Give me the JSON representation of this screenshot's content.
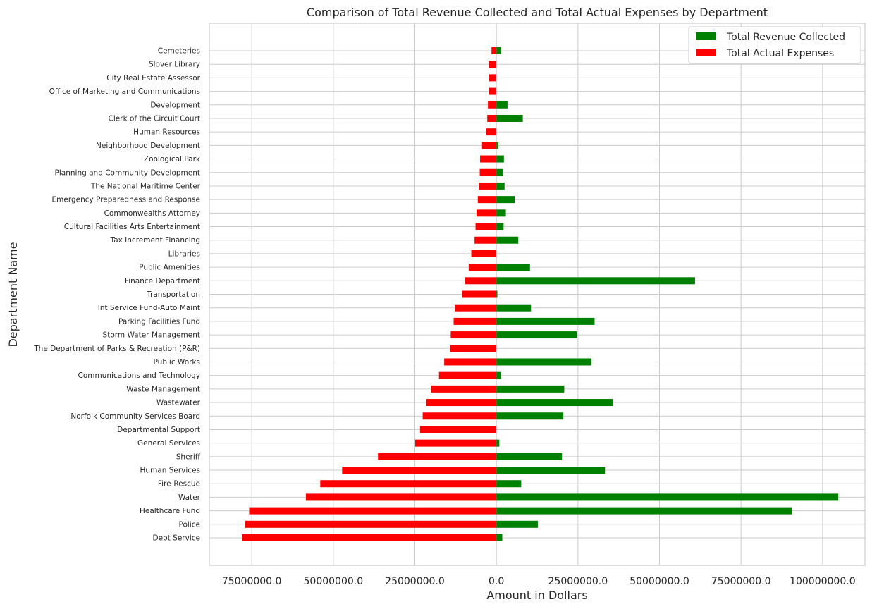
{
  "chart_data": {
    "type": "bar",
    "orientation": "horizontal",
    "title": "Comparison of Total Revenue Collected and Total Actual Expenses by Department",
    "xlabel": "Amount in Dollars",
    "ylabel": "Department Name",
    "xlim": [
      -88000000,
      113000000
    ],
    "xticks": [
      -75000000,
      -50000000,
      -25000000,
      0,
      25000000,
      50000000,
      75000000,
      100000000
    ],
    "xtick_labels": [
      "75000000.0",
      "50000000.0",
      "25000000.0",
      "0.0",
      "25000000.0",
      "50000000.0",
      "75000000.0",
      "100000000.0"
    ],
    "grid": true,
    "legend_position": "top-right",
    "categories": [
      "Debt Service",
      "Police",
      "Healthcare Fund",
      "Water",
      "Fire-Rescue",
      "Human Services",
      "Sheriff",
      "General Services",
      "Departmental Support",
      "Norfolk Community Services Board",
      "Wastewater",
      "Waste Management",
      "Communications and Technology",
      "Public Works",
      "The Department of Parks & Recreation (P&R)",
      "Storm Water Management",
      "Parking Facilities Fund",
      "Int Service Fund-Auto Maint",
      "Transportation",
      "Finance Department",
      "Public Amenities",
      "Libraries",
      "Tax Increment Financing",
      "Cultural Facilities Arts Entertainment",
      "Commonwealths Attorney",
      "Emergency Preparedness and Response",
      "The National Maritime Center",
      "Planning and Community Development",
      "Zoological Park",
      "Neighborhood Development",
      "Human Resources",
      "Clerk of the Circuit Court",
      "Development",
      "Office of Marketing and Communications",
      "City Real Estate Assessor",
      "Slover Library",
      "Cemeteries"
    ],
    "series": [
      {
        "name": "Total Revenue Collected",
        "color": "#008000",
        "values": [
          1800000,
          12700000,
          90600000,
          104800000,
          7600000,
          33300000,
          20100000,
          900000,
          0,
          20500000,
          35700000,
          20800000,
          1400000,
          29100000,
          0,
          24700000,
          30100000,
          10600000,
          300000,
          60900000,
          10300000,
          0,
          6700000,
          2200000,
          2900000,
          5600000,
          2500000,
          1900000,
          2300000,
          600000,
          0,
          8100000,
          3400000,
          0,
          0,
          0,
          1400000
        ]
      },
      {
        "name": "Total Actual Expenses",
        "color": "#ff0000",
        "values": [
          -78000000,
          -77000000,
          -75800000,
          -58400000,
          -54000000,
          -47300000,
          -36300000,
          -24900000,
          -23400000,
          -22600000,
          -21500000,
          -20100000,
          -17600000,
          -16000000,
          -14200000,
          -14000000,
          -13100000,
          -12800000,
          -10500000,
          -9600000,
          -8500000,
          -7700000,
          -6700000,
          -6400000,
          -6100000,
          -5700000,
          -5400000,
          -5100000,
          -5000000,
          -4400000,
          -3100000,
          -2800000,
          -2600000,
          -2400000,
          -2200000,
          -2200000,
          -1500000
        ]
      }
    ]
  }
}
